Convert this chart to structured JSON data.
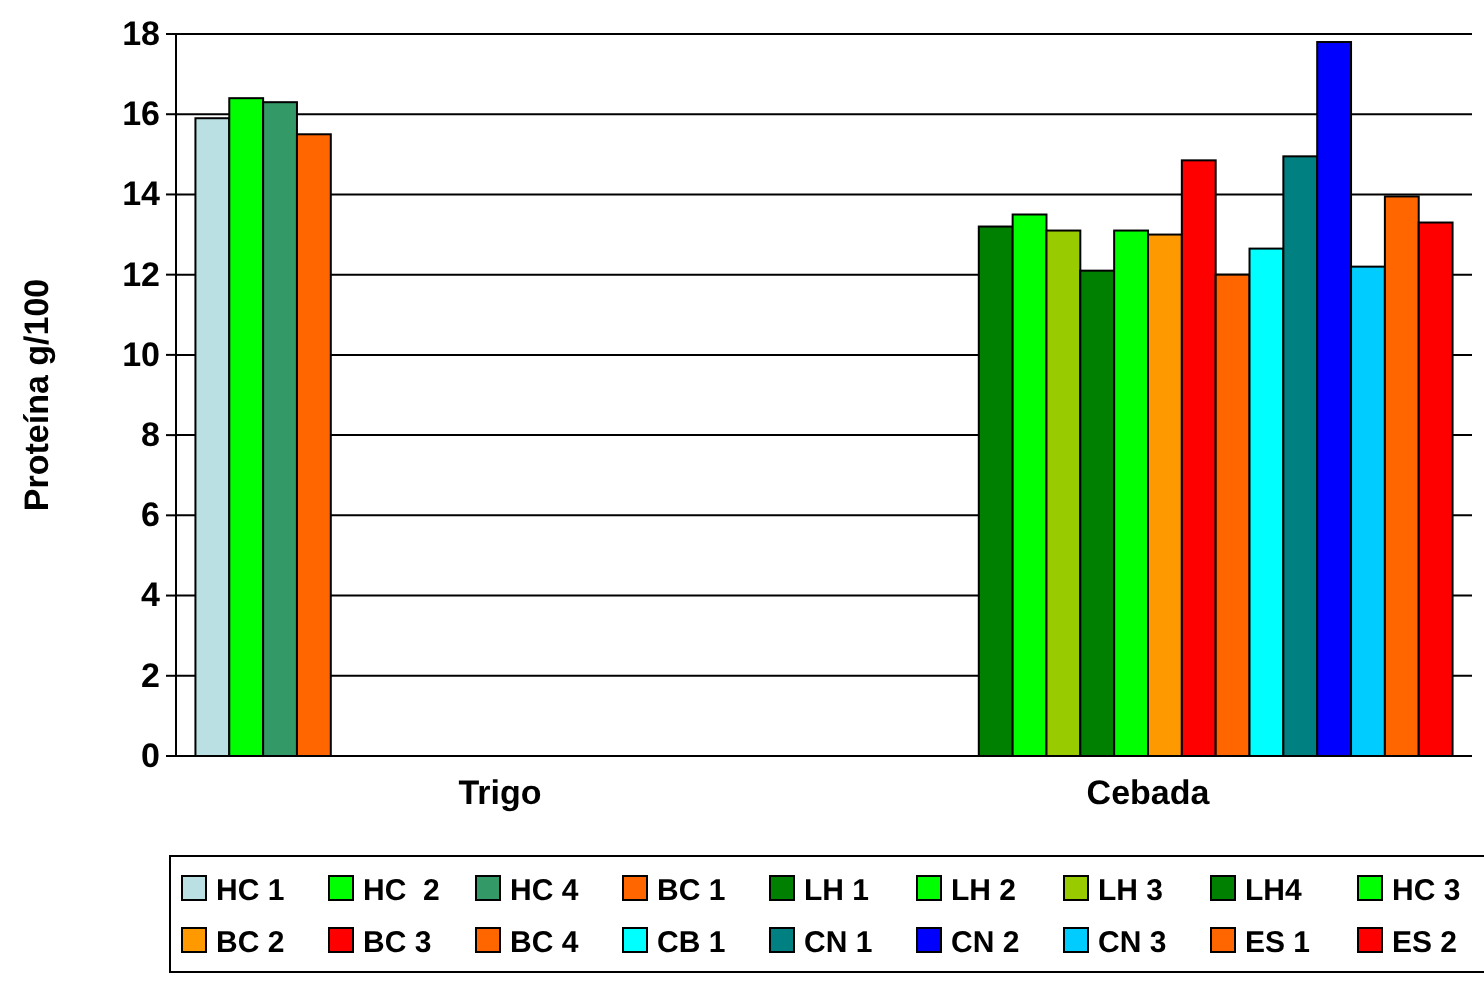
{
  "chart_data": {
    "type": "bar",
    "ylabel": "Proteína g/100",
    "categories": [
      "Trigo",
      "Cebada"
    ],
    "ylim": [
      0,
      18
    ],
    "yticks": [
      0,
      2,
      4,
      6,
      8,
      10,
      12,
      14,
      16,
      18
    ],
    "grid": "y",
    "legend": "bottom",
    "series": [
      {
        "name": "HC 1",
        "color": "#bbe0e3",
        "values": [
          15.9,
          null
        ]
      },
      {
        "name": "HC  2",
        "color": "#00ff00",
        "values": [
          16.4,
          null
        ]
      },
      {
        "name": "HC 4",
        "color": "#339966",
        "values": [
          16.3,
          null
        ]
      },
      {
        "name": "BC 1",
        "color": "#ff6600",
        "values": [
          15.5,
          null
        ]
      },
      {
        "name": "LH 1",
        "color": "#008000",
        "values": [
          null,
          13.2
        ]
      },
      {
        "name": "LH 2",
        "color": "#00ff00",
        "values": [
          null,
          13.5
        ]
      },
      {
        "name": "LH 3",
        "color": "#99cc00",
        "values": [
          null,
          13.1
        ]
      },
      {
        "name": "LH4",
        "color": "#008000",
        "values": [
          null,
          12.1
        ]
      },
      {
        "name": "HC 3",
        "color": "#00ff00",
        "values": [
          null,
          13.1
        ]
      },
      {
        "name": "BC 2",
        "color": "#ff9900",
        "values": [
          null,
          13.0
        ]
      },
      {
        "name": "BC 3",
        "color": "#ff0000",
        "values": [
          null,
          14.85
        ]
      },
      {
        "name": "BC 4",
        "color": "#ff6600",
        "values": [
          null,
          12.0
        ]
      },
      {
        "name": "CB 1",
        "color": "#00ffff",
        "values": [
          null,
          12.65
        ]
      },
      {
        "name": "CN 1",
        "color": "#008080",
        "values": [
          null,
          14.95
        ]
      },
      {
        "name": "CN 2",
        "color": "#0000ff",
        "values": [
          null,
          17.8
        ]
      },
      {
        "name": "CN 3",
        "color": "#00ccff",
        "values": [
          null,
          12.2
        ]
      },
      {
        "name": "ES 1",
        "color": "#ff6600",
        "values": [
          null,
          13.95
        ]
      },
      {
        "name": "ES 2",
        "color": "#ff0000",
        "values": [
          null,
          13.3
        ]
      }
    ]
  }
}
